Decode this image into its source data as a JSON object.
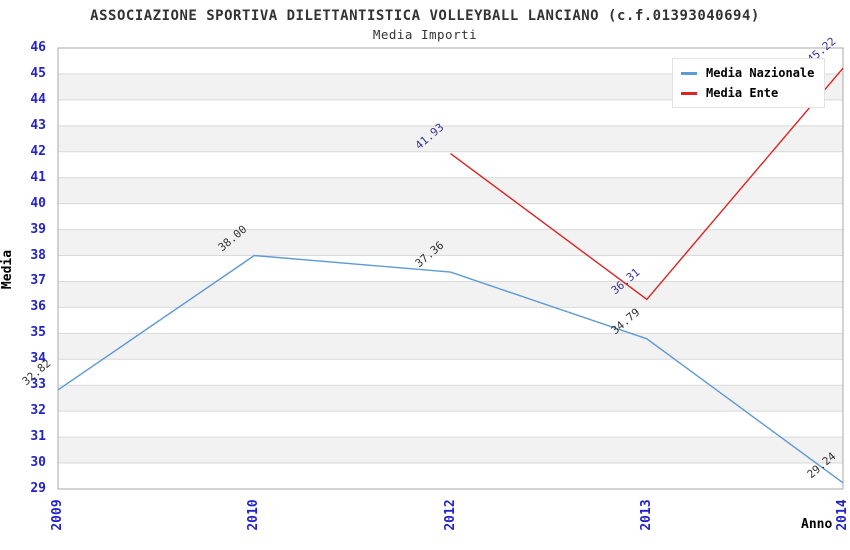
{
  "chart_data": {
    "type": "line",
    "title": "ASSOCIAZIONE SPORTIVA DILETTANTISTICA VOLLEYBALL LANCIANO (c.f.01393040694)",
    "subtitle": "Media Importi",
    "xlabel": "Anno",
    "ylabel": "Media",
    "categories": [
      "2009",
      "2010",
      "2012",
      "2013",
      "2014"
    ],
    "series": [
      {
        "name": "Media Nazionale",
        "color": "#5E9AD4",
        "label_color": "#333333",
        "values": [
          32.82,
          38.0,
          37.36,
          34.79,
          29.24
        ]
      },
      {
        "name": "Media Ente",
        "color": "#DD2222",
        "label_color": "#333399",
        "values": [
          null,
          null,
          41.93,
          36.31,
          45.22
        ]
      }
    ],
    "ylim": [
      29,
      46
    ],
    "yticks": [
      29,
      30,
      31,
      32,
      33,
      34,
      35,
      36,
      37,
      38,
      39,
      40,
      41,
      42,
      43,
      44,
      45,
      46
    ],
    "value_label_decimals": 2,
    "grid": "horizontal-bands",
    "legend_position": "top-right"
  },
  "colors": {
    "axis_tick": "#2222CC",
    "band": "#F2F2F2",
    "gridline": "#D9D9D9",
    "plot_border": "#AAAAAA",
    "background": "#FFFFFF"
  }
}
